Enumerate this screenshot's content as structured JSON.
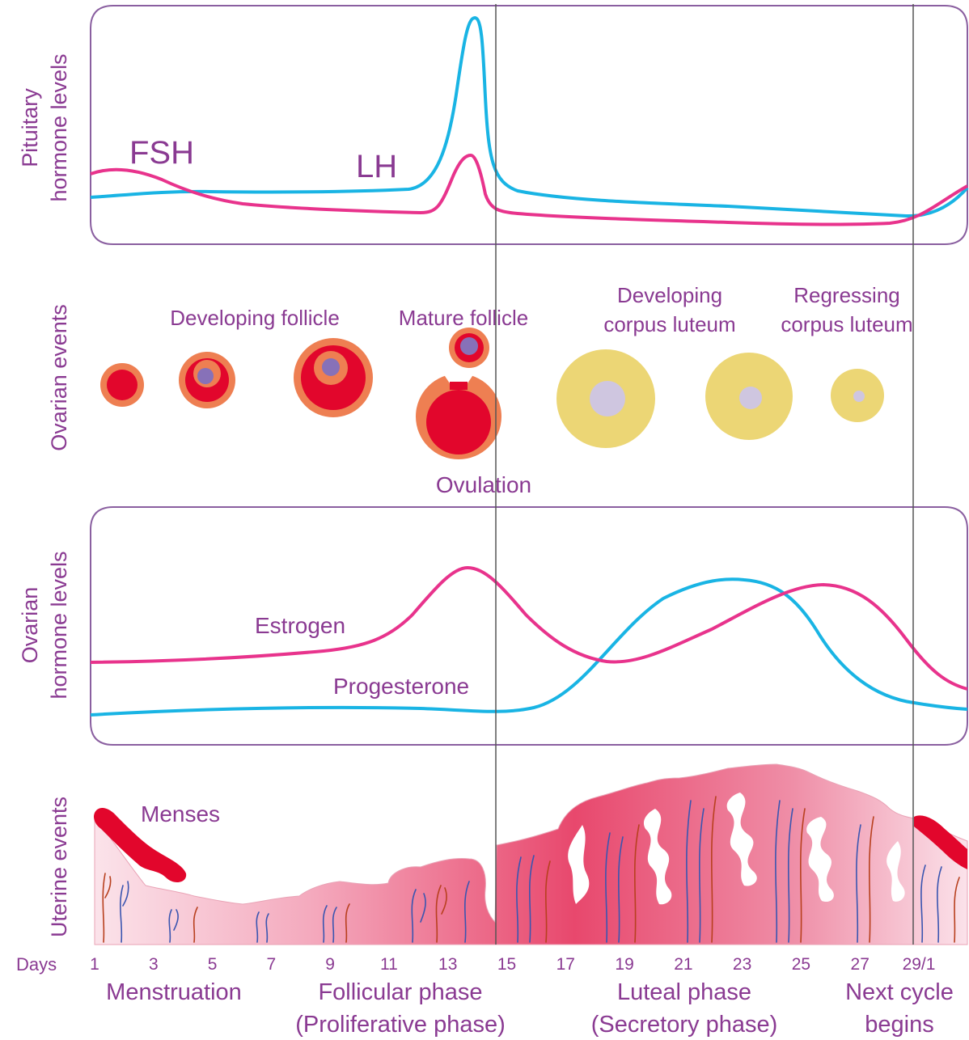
{
  "pituitary": {
    "axis_label_line1": "Pituitary",
    "axis_label_line2": "hormone levels",
    "fsh_label": "FSH",
    "lh_label": "LH"
  },
  "ovarian_events": {
    "axis_label": "Ovarian events",
    "developing_follicle": "Developing follicle",
    "mature_follicle": "Mature follicle",
    "developing_cl_line1": "Developing",
    "developing_cl_line2": "corpus luteum",
    "regressing_cl_line1": "Regressing",
    "regressing_cl_line2": "corpus luteum",
    "ovulation": "Ovulation"
  },
  "ovarian_hormones": {
    "axis_label_line1": "Ovarian",
    "axis_label_line2": "hormone levels",
    "estrogen_label": "Estrogen",
    "progesterone_label": "Progesterone"
  },
  "uterine": {
    "axis_label": "Uterine events",
    "menses_label": "Menses"
  },
  "days": {
    "label": "Days",
    "ticks": [
      "1",
      "3",
      "5",
      "7",
      "9",
      "11",
      "13",
      "15",
      "17",
      "19",
      "21",
      "23",
      "25",
      "27",
      "29/1"
    ]
  },
  "phases": {
    "menstruation": "Menstruation",
    "follicular_line1": "Follicular phase",
    "follicular_line2": "(Proliferative phase)",
    "luteal_line1": "Luteal phase",
    "luteal_line2": "(Secretory phase)",
    "next_line1": "Next cycle",
    "next_line2": "begins"
  },
  "colors": {
    "cyan": "#19b4e4",
    "magenta": "#e8338c",
    "purple_text": "#8a3a92",
    "frame": "#8a5fa0",
    "follicle_red": "#e2062c",
    "follicle_orange": "#ee7f52",
    "oocyte": "#8771b8",
    "corpus_yellow": "#ecd675",
    "corpus_center": "#cfc6e0"
  }
}
